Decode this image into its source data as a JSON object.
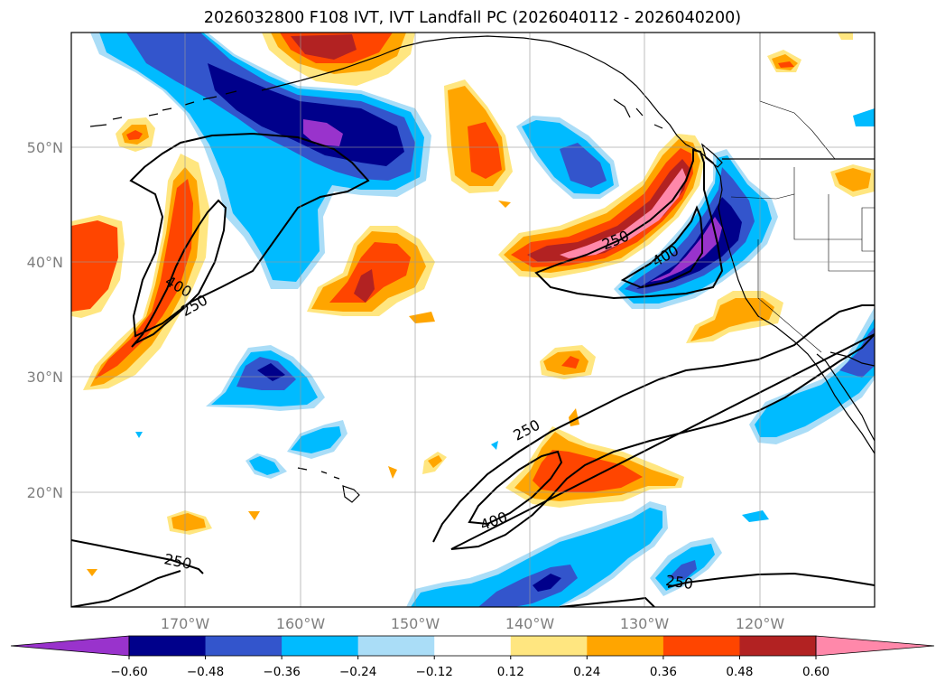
{
  "title": "2026032800 F108 IVT, IVT Landfall PC (2026040112 - 2026040200)",
  "lon_ticks": [
    "170°W",
    "160°W",
    "150°W",
    "140°W",
    "130°W",
    "120°W"
  ],
  "lat_ticks": [
    "20°N",
    "30°N",
    "40°N",
    "50°N"
  ],
  "colorbar": {
    "ticks": [
      "−0.60",
      "−0.48",
      "−0.36",
      "−0.24",
      "−0.12",
      "0.12",
      "0.24",
      "0.36",
      "0.48",
      "0.60"
    ],
    "colors": [
      "#9933cc",
      "#00008b",
      "#3355cc",
      "#00bbff",
      "#aaddf7",
      "#ffffff",
      "#ffe680",
      "#ffa500",
      "#ff4500",
      "#b22222",
      "#ff88aa"
    ]
  },
  "contour_labels": {
    "c1": "400",
    "c2": "250",
    "c3": "250",
    "c4": "400",
    "c5": "250",
    "c6": "400",
    "c7": "250",
    "c8": "250"
  },
  "colors": {
    "purple": "#9933cc",
    "navy": "#00008b",
    "blue": "#3355cc",
    "cyan": "#00bbff",
    "lightblue": "#aaddf7",
    "yellow": "#ffe680",
    "orange": "#ffa500",
    "redorange": "#ff4500",
    "darkred": "#b22222",
    "pink": "#ff88aa"
  }
}
